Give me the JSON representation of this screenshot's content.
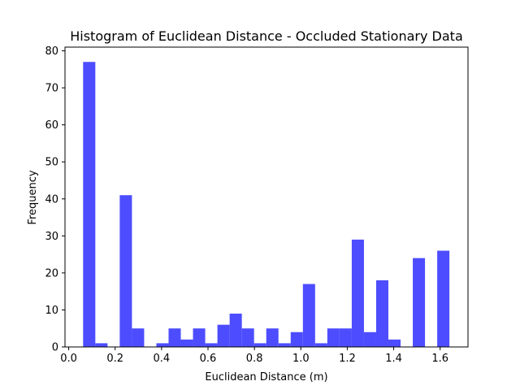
{
  "chart_data": {
    "type": "bar",
    "title": "Histogram of Euclidean Distance - Occluded Stationary Data",
    "xlabel": "Euclidean Distance (m)",
    "ylabel": "Frequency",
    "xlim": [
      -0.016,
      1.72
    ],
    "ylim": [
      0,
      81
    ],
    "xticks": [
      0.0,
      0.2,
      0.4,
      0.6,
      0.8,
      1.0,
      1.2,
      1.4,
      1.6
    ],
    "xtick_labels": [
      "0.0",
      "0.2",
      "0.4",
      "0.6",
      "0.8",
      "1.0",
      "1.2",
      "1.4",
      "1.6"
    ],
    "yticks": [
      0,
      10,
      20,
      30,
      40,
      50,
      60,
      70,
      80
    ],
    "ytick_labels": [
      "0",
      "10",
      "20",
      "30",
      "40",
      "50",
      "60",
      "70",
      "80"
    ],
    "bar_color": "#4d4dff",
    "bin_start": 0.062,
    "bin_width": 0.0526,
    "values": [
      77,
      1,
      0,
      41,
      5,
      0,
      1,
      5,
      2,
      5,
      1,
      6,
      9,
      5,
      1,
      5,
      1,
      4,
      17,
      1,
      5,
      5,
      29,
      4,
      18,
      2,
      0,
      24,
      0,
      26
    ],
    "grid": false
  }
}
